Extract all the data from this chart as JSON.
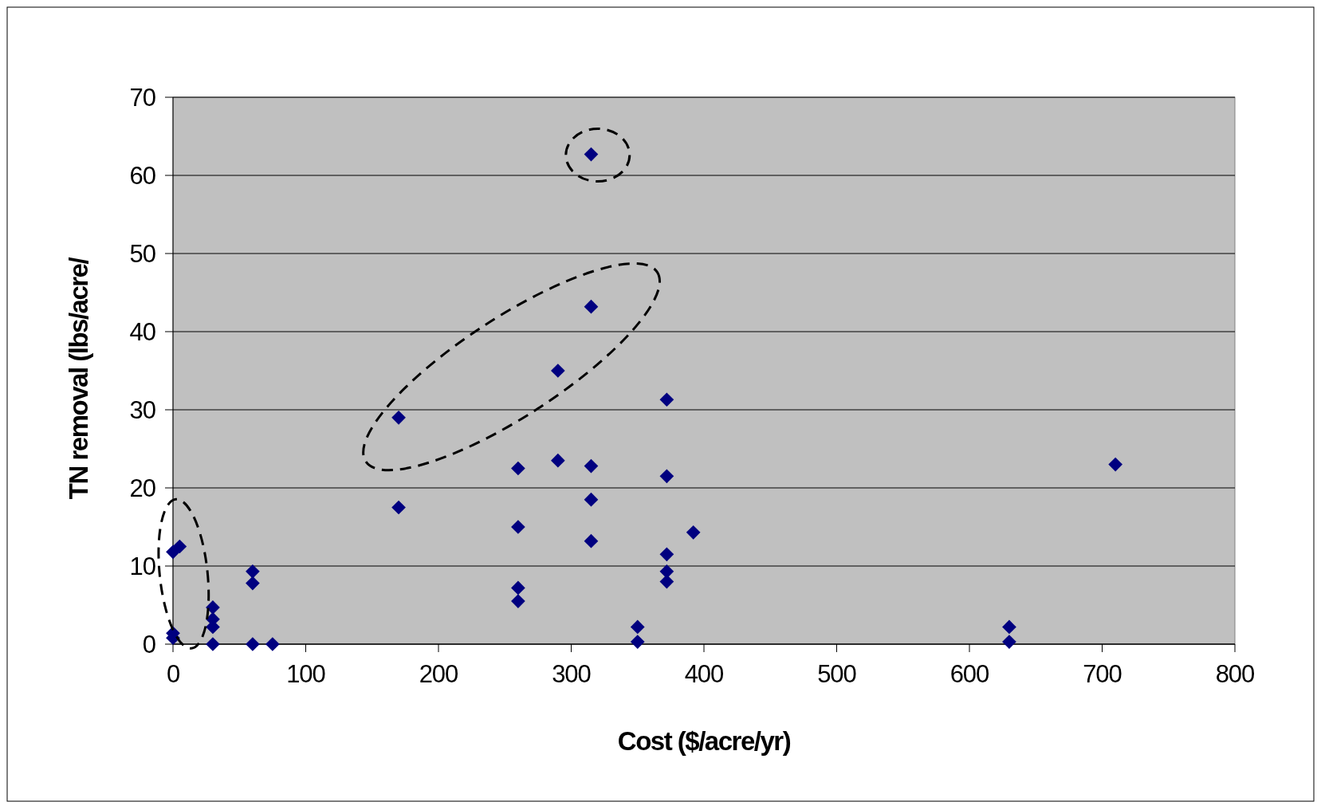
{
  "chart_data": {
    "type": "scatter",
    "xlabel": "Cost ($/acre/yr)",
    "ylabel": "TN removal (lbs/acre/",
    "xlim": [
      0,
      800
    ],
    "ylim": [
      0,
      70
    ],
    "xticks": [
      0,
      100,
      200,
      300,
      400,
      500,
      600,
      700,
      800
    ],
    "yticks": [
      0,
      10,
      20,
      30,
      40,
      50,
      60,
      70
    ],
    "grid": "y",
    "marker": "diamond",
    "series": [
      {
        "color": "#000080",
        "x": [
          0,
          0,
          0,
          5,
          30,
          30,
          30,
          30,
          60,
          60,
          60,
          75,
          170,
          170,
          260,
          260,
          260,
          260,
          290,
          290,
          315,
          315,
          315,
          315,
          315,
          350,
          350,
          372,
          372,
          372,
          372,
          372,
          392,
          630,
          630,
          710
        ],
        "values": [
          1.4,
          0.8,
          11.8,
          12.5,
          4.7,
          3.2,
          2.2,
          0,
          9.3,
          7.8,
          0,
          0,
          29,
          17.5,
          22.5,
          15,
          7.2,
          5.5,
          35,
          23.5,
          62.7,
          43.2,
          22.8,
          18.5,
          13.2,
          2.2,
          0.3,
          31.3,
          21.5,
          11.5,
          9.3,
          8,
          14.3,
          2.2,
          0.3,
          23
        ]
      }
    ]
  }
}
